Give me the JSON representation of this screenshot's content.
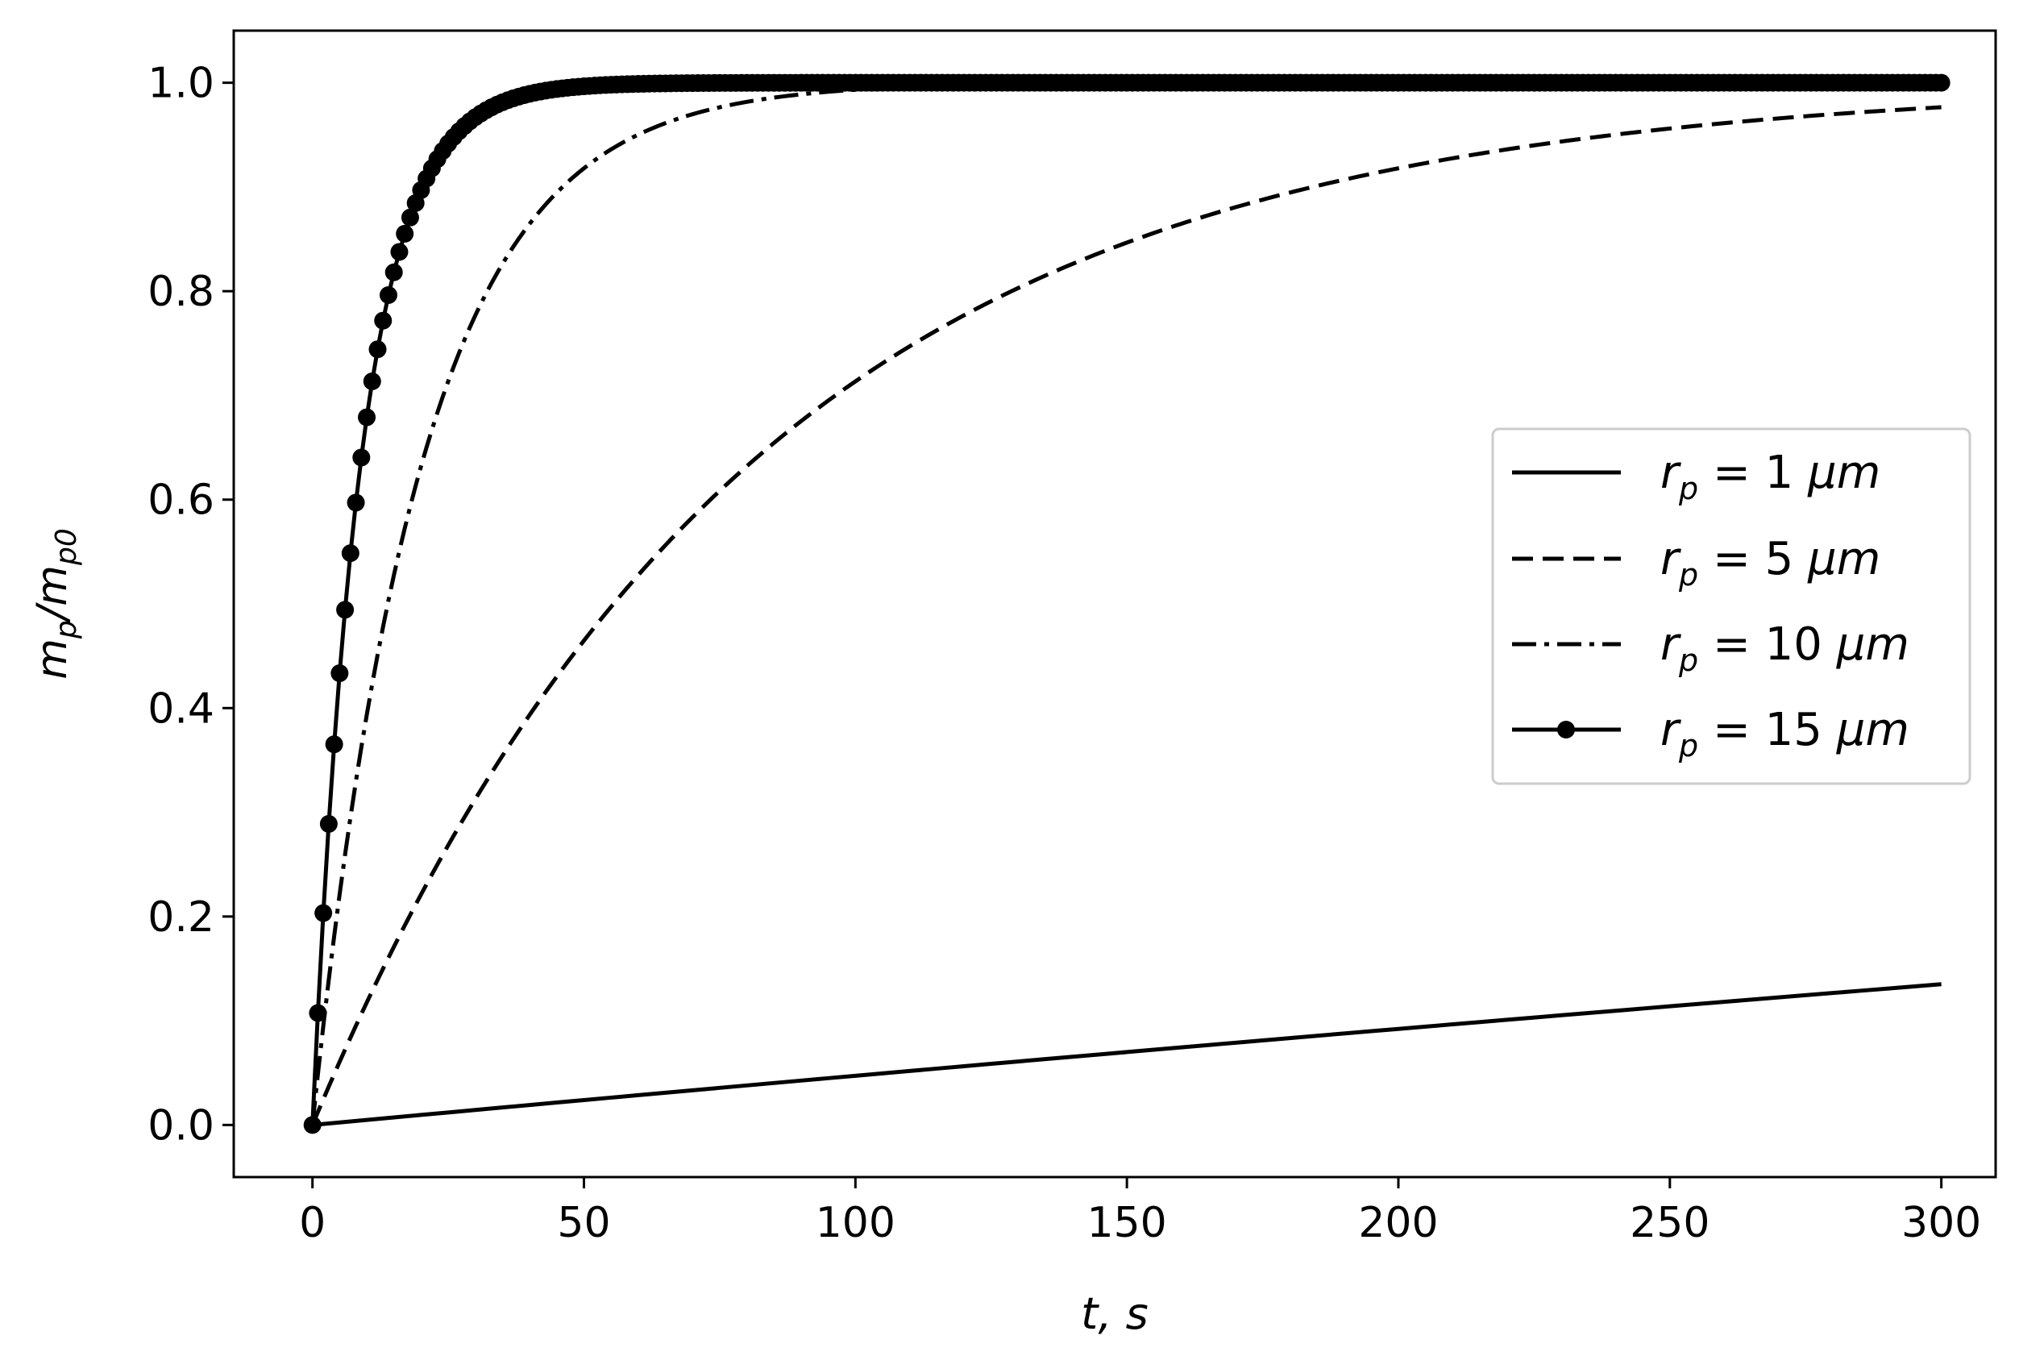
{
  "chart_data": {
    "type": "line",
    "title": "",
    "xlabel": "t, s",
    "ylabel": "m_p/m_p0",
    "xlim": [
      -14.5,
      310
    ],
    "ylim": [
      -0.05,
      1.05
    ],
    "xticks": [
      0,
      50,
      100,
      150,
      200,
      250,
      300
    ],
    "xtick_labels": [
      "0",
      "50",
      "100",
      "150",
      "200",
      "250",
      "300"
    ],
    "yticks": [
      0.0,
      0.2,
      0.4,
      0.6,
      0.8,
      1.0
    ],
    "ytick_labels": [
      "0.0",
      "0.2",
      "0.4",
      "0.6",
      "0.8",
      "1.0"
    ],
    "grid": false,
    "legend_position": "center-right",
    "series": [
      {
        "name": "r_p = 1 μm",
        "label_main": "r",
        "label_sub": "p",
        "label_rest": " = 1 ",
        "label_unit": "μm",
        "style": "solid",
        "model": "exp",
        "tau": 2068,
        "t_end": 300,
        "samples": 60,
        "markers": false
      },
      {
        "name": "r_p = 5 μm",
        "label_main": "r",
        "label_sub": "p",
        "label_rest": " = 5 ",
        "label_unit": "μm",
        "style": "dashed",
        "model": "exp",
        "tau": 80,
        "t_end": 300,
        "samples": 300,
        "markers": false
      },
      {
        "name": "r_p = 10 μm",
        "label_main": "r",
        "label_sub": "p",
        "label_rest": " = 10 ",
        "label_unit": "μm",
        "style": "dashdot",
        "model": "exp",
        "tau": 20,
        "t_end": 300,
        "samples": 300,
        "markers": false
      },
      {
        "name": "r_p = 15 μm",
        "label_main": "r",
        "label_sub": "p",
        "label_rest": " = 15 ",
        "label_unit": "μm",
        "style": "solid-marker",
        "model": "exp",
        "tau": 8.8,
        "t_end": 300,
        "step": 1,
        "markers": true
      }
    ],
    "colors": {
      "line": "#000000",
      "legend_border": "#cccccc"
    }
  }
}
